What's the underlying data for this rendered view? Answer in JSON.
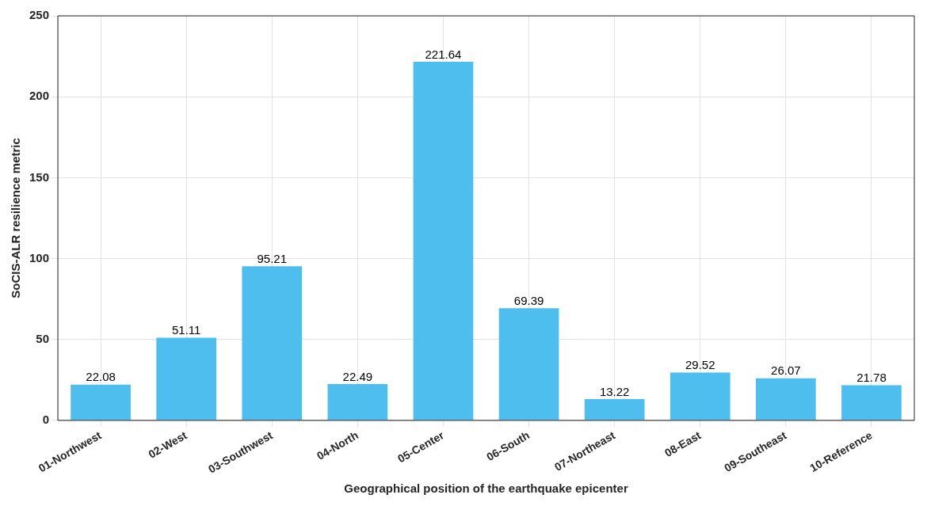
{
  "chart_data": {
    "type": "bar",
    "xlabel": "Geographical position of the earthquake epicenter",
    "ylabel": "SoCIS-ALR resilience metric",
    "categories": [
      "01-Northwest",
      "02-West",
      "03-Southwest",
      "04-North",
      "05-Center",
      "06-South",
      "07-Northeast",
      "08-East",
      "09-Southeast",
      "10-Reference"
    ],
    "values": [
      22.08,
      51.11,
      95.21,
      22.49,
      221.64,
      69.39,
      13.22,
      29.52,
      26.07,
      21.78
    ],
    "color": "#4dbeee",
    "ylim": [
      0,
      250
    ],
    "yticks": [
      0,
      50,
      100,
      150,
      200,
      250
    ],
    "grid": true,
    "data_labels": true,
    "legend": false
  }
}
